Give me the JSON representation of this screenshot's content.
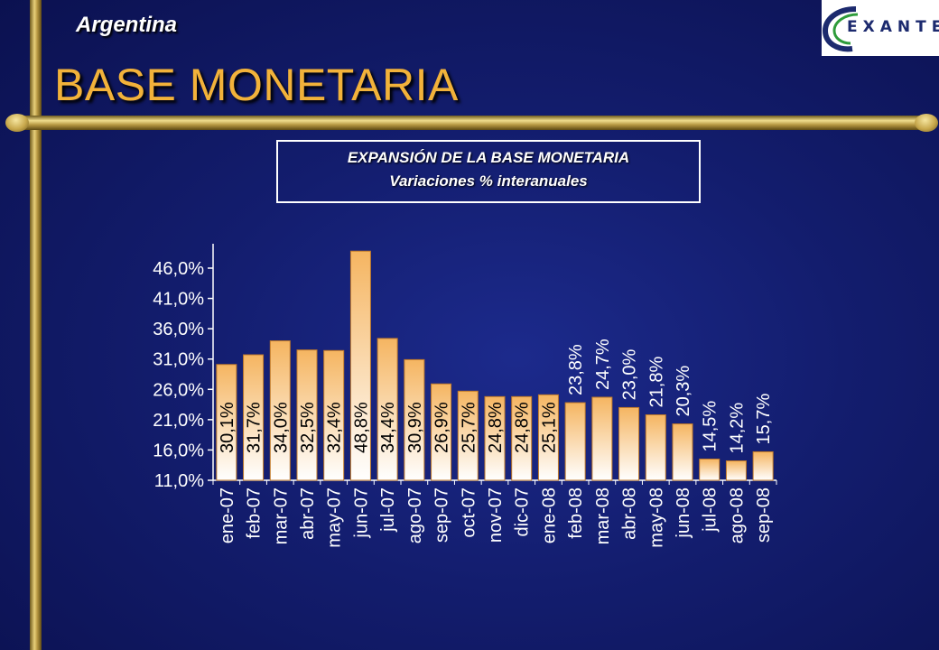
{
  "header": {
    "country": "Argentina",
    "title": "BASE MONETARIA",
    "logo_text": "EXANTE"
  },
  "chart_box": {
    "line1": "EXPANSIÓN DE LA BASE MONETARIA",
    "line2": "Variaciones % interanuales"
  },
  "chart_data": {
    "type": "bar",
    "title": "EXPANSIÓN DE LA BASE MONETARIA",
    "subtitle": "Variaciones % interanuales",
    "categories": [
      "ene-07",
      "feb-07",
      "mar-07",
      "abr-07",
      "may-07",
      "jun-07",
      "jul-07",
      "ago-07",
      "sep-07",
      "oct-07",
      "nov-07",
      "dic-07",
      "ene-08",
      "feb-08",
      "mar-08",
      "abr-08",
      "may-08",
      "jun-08",
      "jul-08",
      "ago-08",
      "sep-08"
    ],
    "values": [
      30.1,
      31.7,
      34.0,
      32.5,
      32.4,
      48.8,
      34.4,
      30.9,
      26.9,
      25.7,
      24.8,
      24.8,
      25.1,
      23.8,
      24.7,
      23.0,
      21.8,
      20.3,
      14.5,
      14.2,
      15.7
    ],
    "value_labels": [
      "30,1%",
      "31,7%",
      "34,0%",
      "32,5%",
      "32,4%",
      "48,8%",
      "34,4%",
      "30,9%",
      "26,9%",
      "25,7%",
      "24,8%",
      "24,8%",
      "25,1%",
      "23,8%",
      "24,7%",
      "23,0%",
      "21,8%",
      "20,3%",
      "14,5%",
      "14,2%",
      "15,7%"
    ],
    "label_inside": [
      true,
      true,
      true,
      true,
      true,
      true,
      true,
      true,
      true,
      true,
      true,
      true,
      true,
      false,
      false,
      false,
      false,
      false,
      false,
      false,
      false
    ],
    "yticks": [
      11,
      16,
      21,
      26,
      31,
      36,
      41,
      46
    ],
    "ytick_labels": [
      "11,0%",
      "16,0%",
      "21,0%",
      "26,0%",
      "31,0%",
      "36,0%",
      "41,0%",
      "46,0%"
    ],
    "ylim": [
      11,
      50
    ],
    "grid": false,
    "colors": {
      "bar_top": "#f5b561",
      "bar_bottom": "#ffffff",
      "bar_border": "#c07a2a",
      "axis": "#ffffff",
      "text": "#ffffff"
    }
  }
}
